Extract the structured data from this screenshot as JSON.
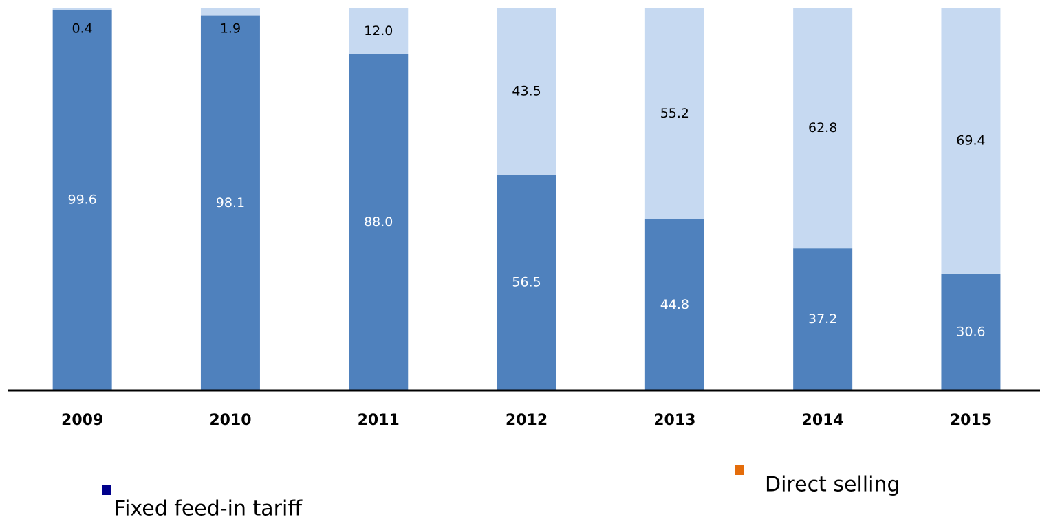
{
  "chart_data": {
    "type": "stacked_bar",
    "categories": [
      "2009",
      "2010",
      "2011",
      "2012",
      "2013",
      "2014",
      "2015"
    ],
    "series": [
      {
        "name": "Fixed feed-in tariff",
        "color": "#4f81bd",
        "legend_color": "#00008b",
        "label_color": "#ffffff",
        "values": [
          99.6,
          98.1,
          88,
          56.5,
          44.8,
          37.2,
          30.6
        ],
        "value_labels": [
          "99.6",
          "98.1",
          "88.0",
          "56.5",
          "44.8",
          "37.2",
          "30.6"
        ]
      },
      {
        "name": "Direct selling",
        "color": "#c6d9f1",
        "legend_color": "#e46c0a",
        "label_color": "#000000",
        "values": [
          0.4,
          1.9,
          12,
          43.5,
          55.2,
          62.8,
          69.4
        ],
        "value_labels": [
          "0.4",
          "1.9",
          "12.0",
          "43.5",
          "55.2",
          "62.8",
          "69.4"
        ]
      }
    ],
    "ylim": [
      0,
      100
    ]
  }
}
